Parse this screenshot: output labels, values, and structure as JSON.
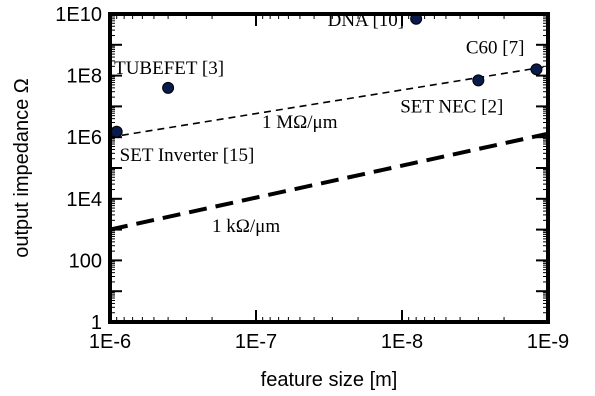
{
  "chart_data": {
    "type": "scatter",
    "xlabel": "feature size [m]",
    "ylabel": "output impedance Ω",
    "x_scale": "log",
    "x_reversed": true,
    "y_scale": "log",
    "xlim": [
      1e-06,
      1e-09
    ],
    "ylim": [
      1,
      10000000000.0
    ],
    "x_ticks": [
      {
        "value": 1e-06,
        "label": "1E-6"
      },
      {
        "value": 1e-07,
        "label": "1E-7"
      },
      {
        "value": 1e-08,
        "label": "1E-8"
      },
      {
        "value": 1e-09,
        "label": "1E-9"
      }
    ],
    "y_ticks": [
      {
        "value": 1,
        "label": "1"
      },
      {
        "value": 100,
        "label": "100"
      },
      {
        "value": 10000.0,
        "label": "1E4"
      },
      {
        "value": 1000000.0,
        "label": "1E6"
      },
      {
        "value": 100000000.0,
        "label": "1E8"
      },
      {
        "value": 10000000000.0,
        "label": "1E10"
      }
    ],
    "grid": false,
    "points": [
      {
        "label": "SET Inverter [15]",
        "x": 9e-07,
        "y": 1500000.0
      },
      {
        "label": "TUBEFET [3]",
        "x": 4e-07,
        "y": 40000000.0
      },
      {
        "label": "DNA [10]",
        "x": 8e-09,
        "y": 7000000000.0
      },
      {
        "label": "SET NEC [2]",
        "x": 3e-09,
        "y": 70000000.0
      },
      {
        "label": "C60 [7]",
        "x": 1.2e-09,
        "y": 160000000.0
      }
    ],
    "lines": [
      {
        "label": "1 MΩ/μm",
        "style": "dashed-thin",
        "x": [
          1e-06,
          1e-09
        ],
        "y": [
          1000000.0,
          200000000.0
        ]
      },
      {
        "label": "1 kΩ/μm",
        "style": "dashed-thick",
        "x": [
          1e-06,
          1e-09
        ],
        "y": [
          1000,
          1300000.0
        ]
      }
    ],
    "colors": {
      "points": "#0a1a4a",
      "lines": "#000000",
      "frame": "#000000"
    }
  }
}
